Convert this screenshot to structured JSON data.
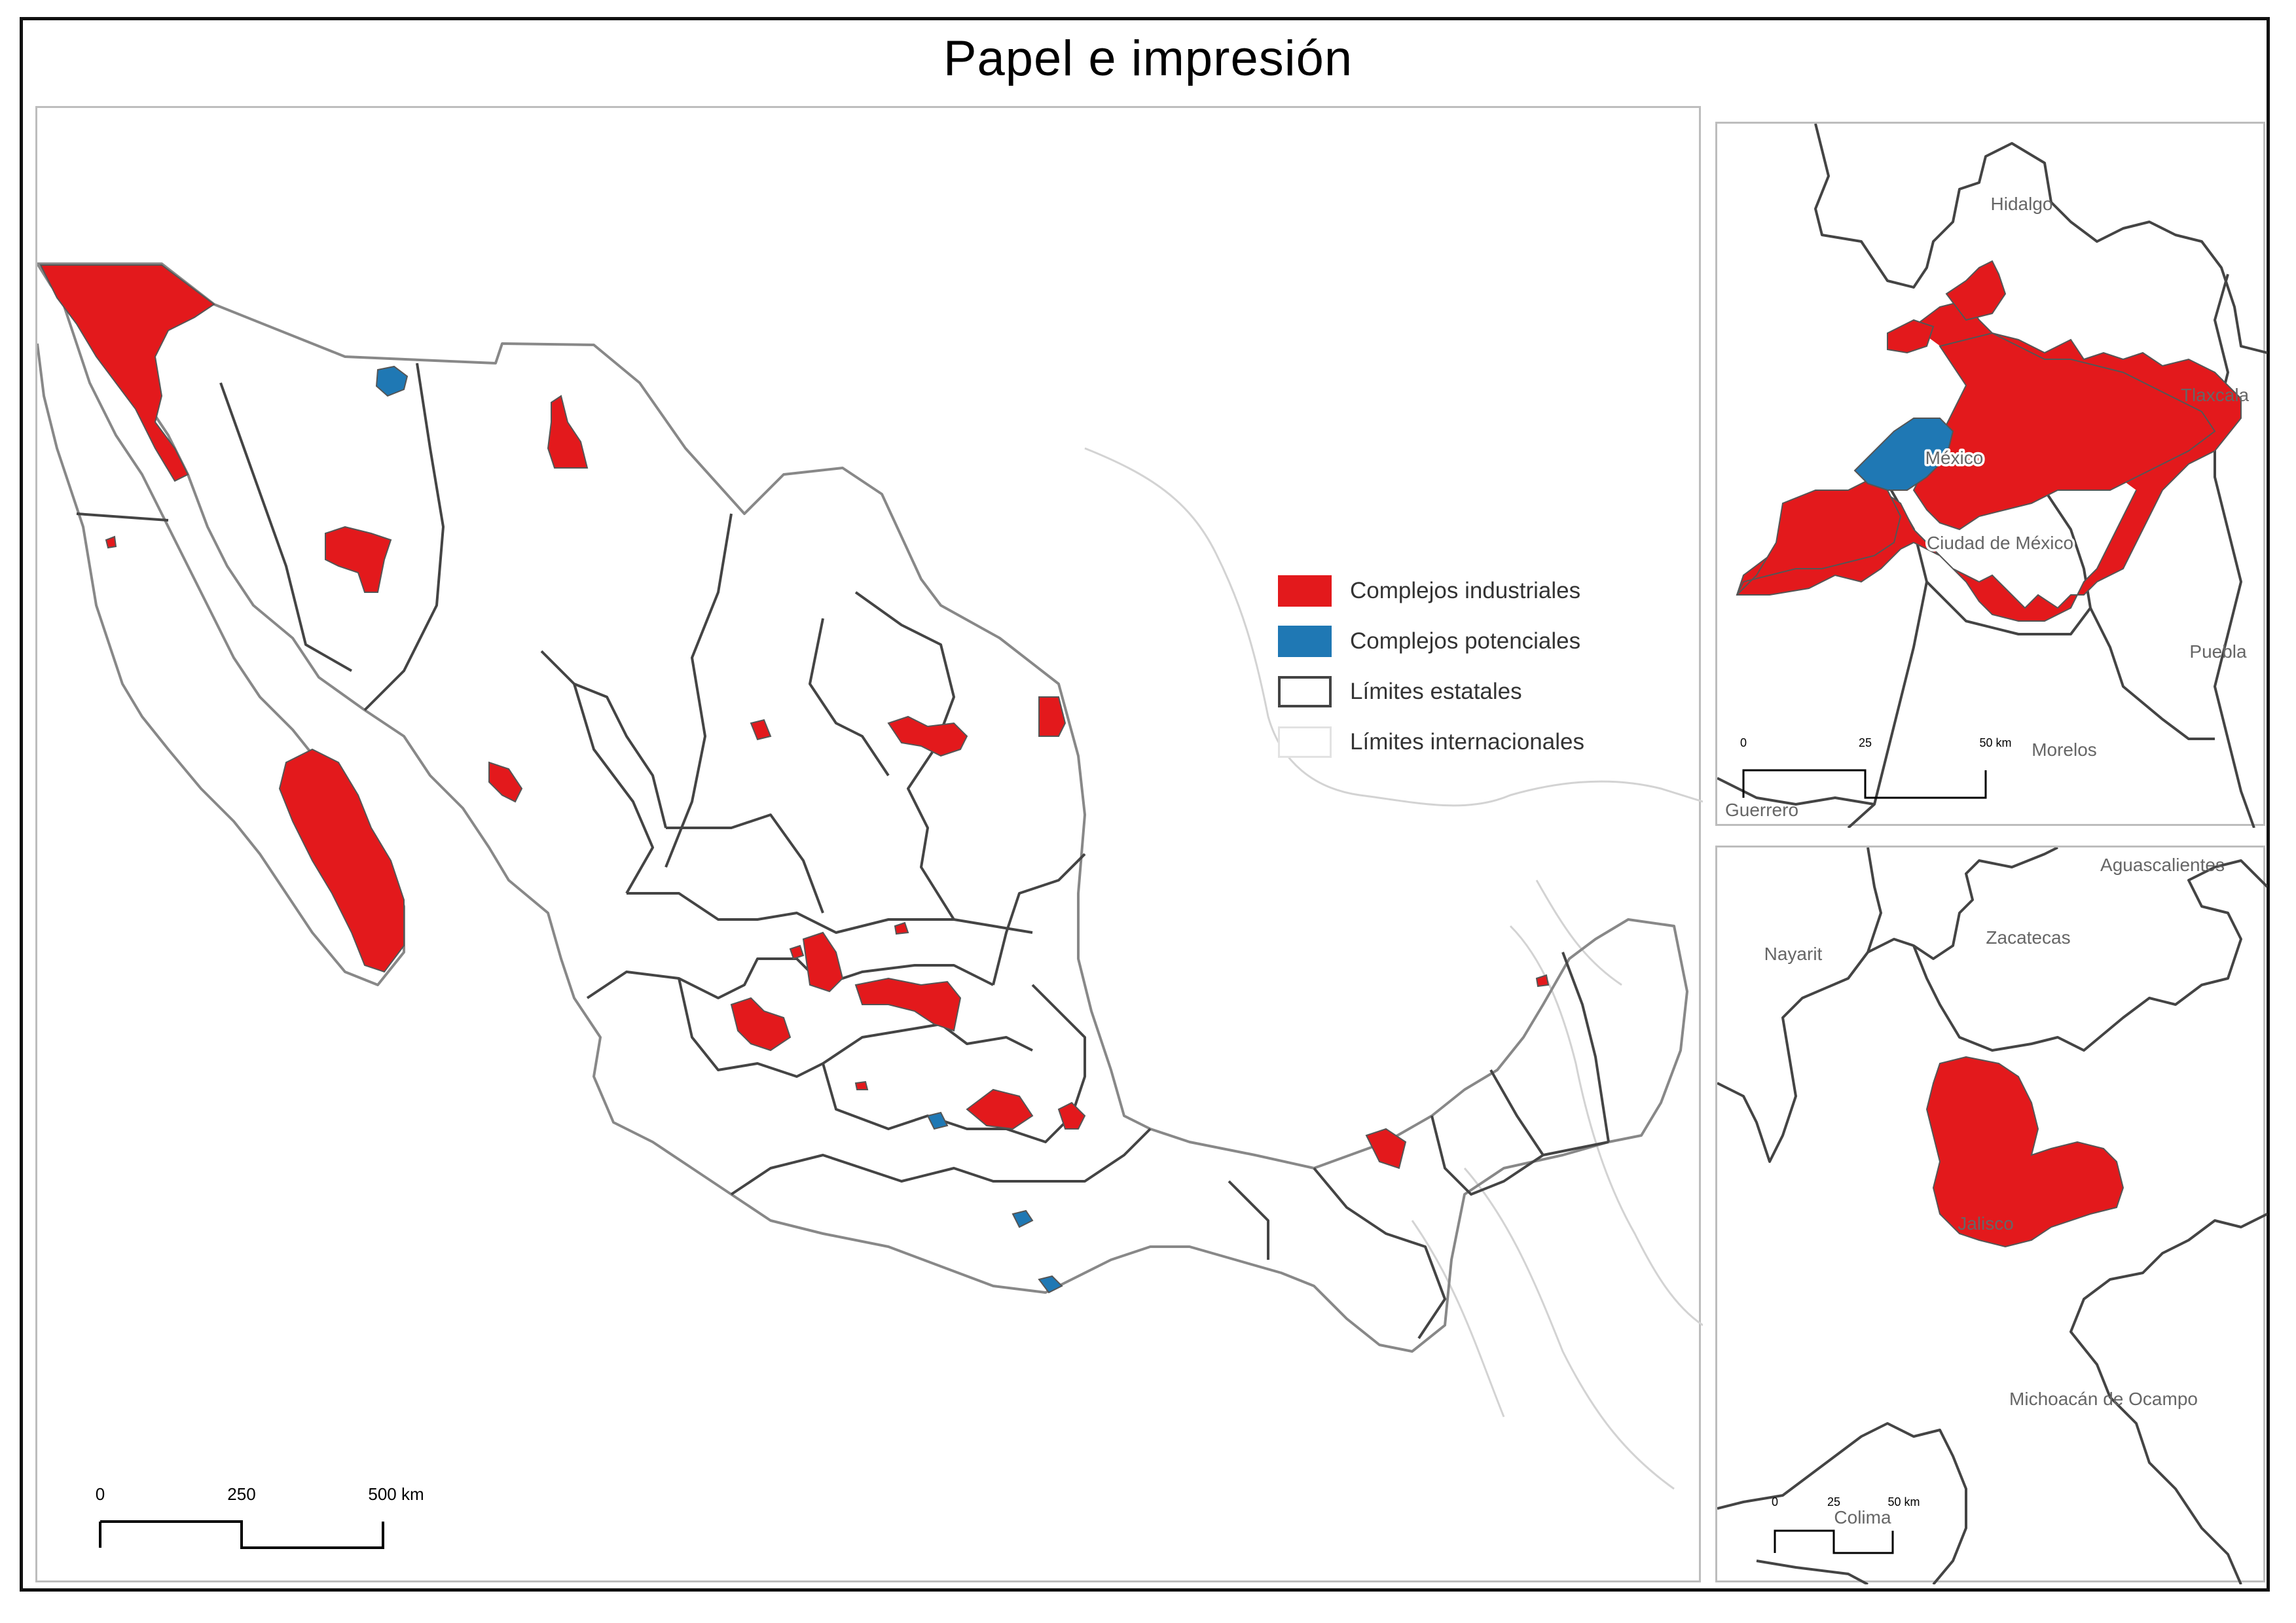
{
  "title": "Papel e impresión",
  "colors": {
    "industrial": "#e3191c",
    "potential": "#1f78b4",
    "state_border": "#444444",
    "international_border": "#d0d0d0"
  },
  "legend": [
    {
      "key": "industrial",
      "label": "Complejos industriales"
    },
    {
      "key": "potential",
      "label": "Complejos potenciales"
    },
    {
      "key": "state",
      "label": "Límites estatales"
    },
    {
      "key": "international",
      "label": "Límites internacionales"
    }
  ],
  "main_map": {
    "scale_labels": [
      "0",
      "250",
      "500 km"
    ]
  },
  "inset_cdmx": {
    "scale_labels": [
      "0",
      "25",
      "50 km"
    ],
    "state_labels": [
      "Hidalgo",
      "Tlaxcala",
      "México",
      "Ciudad de México",
      "Puebla",
      "Morelos",
      "Guerrero"
    ]
  },
  "inset_jalisco": {
    "scale_labels": [
      "0",
      "25",
      "50 km"
    ],
    "state_labels": [
      "Aguascalientes",
      "Zacatecas",
      "Nayarit",
      "Jalisco",
      "Michoacán de Ocampo",
      "Colima"
    ]
  }
}
